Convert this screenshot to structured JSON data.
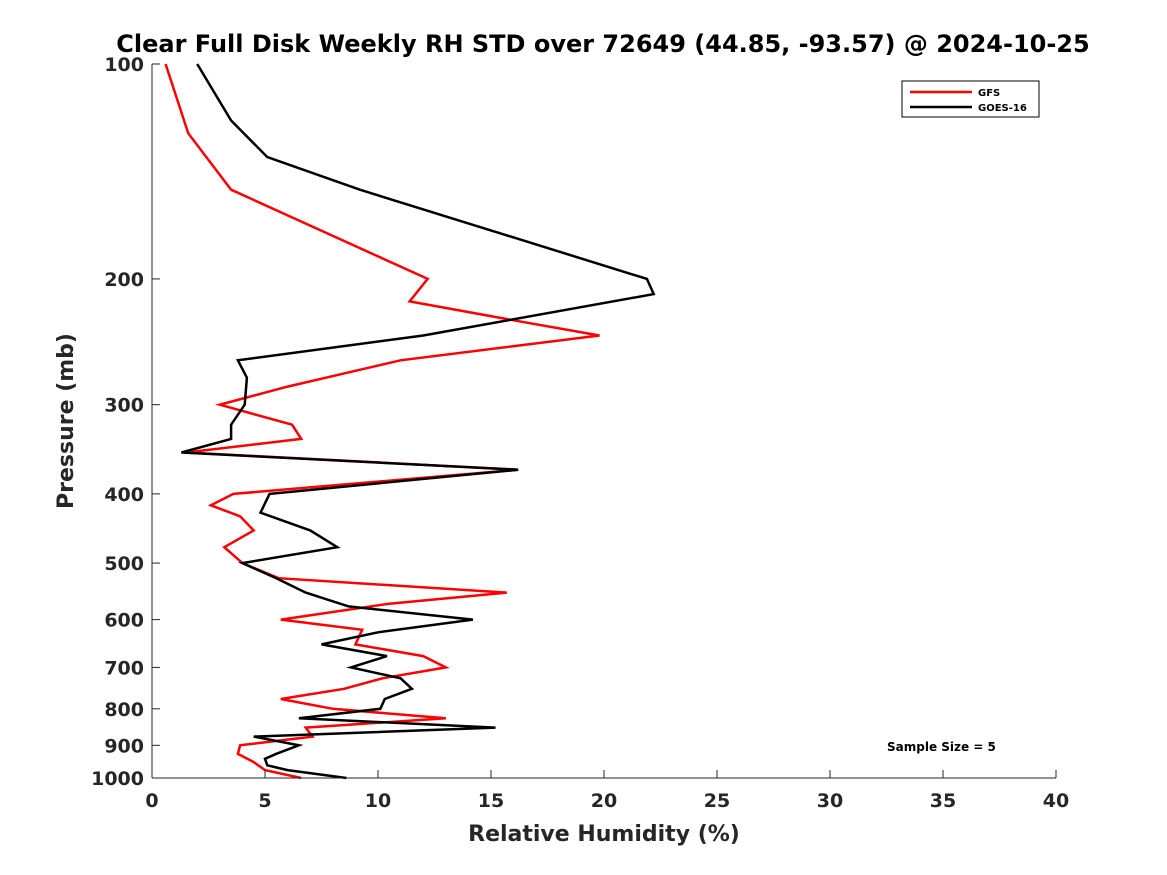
{
  "chart_data": {
    "type": "line",
    "title": "Clear Full Disk Weekly RH STD over 72649 (44.85, -93.57) @ 2024-10-25",
    "xlabel": "Relative Humidity (%)",
    "ylabel": "Pressure (mb)",
    "xlim": [
      0,
      40
    ],
    "ylim": [
      100,
      1000
    ],
    "y_scale": "log",
    "y_reversed": true,
    "grid": false,
    "legend_position": "top-right",
    "x_ticks": [
      0,
      5,
      10,
      15,
      20,
      25,
      30,
      35,
      40
    ],
    "y_ticks": [
      100,
      200,
      300,
      400,
      500,
      600,
      700,
      800,
      900,
      1000
    ],
    "annotation": "Sample Size = 5",
    "series": [
      {
        "name": "GFS",
        "color": "#ff0000",
        "points": [
          [
            0.6,
            100
          ],
          [
            1.6,
            125
          ],
          [
            3.5,
            150
          ],
          [
            12.2,
            200
          ],
          [
            11.4,
            215
          ],
          [
            16.5,
            230
          ],
          [
            19.8,
            240
          ],
          [
            11.0,
            260
          ],
          [
            6.0,
            283
          ],
          [
            3.0,
            300
          ],
          [
            6.2,
            320
          ],
          [
            6.6,
            335
          ],
          [
            1.5,
            350
          ],
          [
            16.2,
            370
          ],
          [
            3.6,
            400
          ],
          [
            2.6,
            415
          ],
          [
            3.9,
            430
          ],
          [
            4.5,
            450
          ],
          [
            3.2,
            475
          ],
          [
            4.0,
            500
          ],
          [
            5.6,
            525
          ],
          [
            15.7,
            550
          ],
          [
            10.5,
            570
          ],
          [
            5.7,
            600
          ],
          [
            9.3,
            620
          ],
          [
            9.0,
            650
          ],
          [
            12.0,
            675
          ],
          [
            13.0,
            700
          ],
          [
            10.2,
            725
          ],
          [
            8.5,
            750
          ],
          [
            5.7,
            775
          ],
          [
            8.0,
            800
          ],
          [
            13.0,
            825
          ],
          [
            6.8,
            850
          ],
          [
            7.1,
            875
          ],
          [
            3.9,
            900
          ],
          [
            3.8,
            925
          ],
          [
            4.5,
            950
          ],
          [
            5.0,
            975
          ],
          [
            6.6,
            1000
          ]
        ]
      },
      {
        "name": "GOES-16",
        "color": "#000000",
        "points": [
          [
            2.0,
            100
          ],
          [
            3.5,
            120
          ],
          [
            5.1,
            135
          ],
          [
            9.2,
            150
          ],
          [
            21.9,
            200
          ],
          [
            22.2,
            210
          ],
          [
            12.0,
            240
          ],
          [
            3.8,
            260
          ],
          [
            4.2,
            275
          ],
          [
            4.1,
            300
          ],
          [
            3.5,
            320
          ],
          [
            3.5,
            335
          ],
          [
            1.3,
            350
          ],
          [
            16.2,
            370
          ],
          [
            5.2,
            400
          ],
          [
            4.8,
            425
          ],
          [
            7.0,
            450
          ],
          [
            8.2,
            475
          ],
          [
            4.0,
            500
          ],
          [
            5.5,
            525
          ],
          [
            6.8,
            550
          ],
          [
            8.7,
            575
          ],
          [
            14.2,
            600
          ],
          [
            10.0,
            625
          ],
          [
            7.5,
            650
          ],
          [
            10.4,
            675
          ],
          [
            8.8,
            700
          ],
          [
            11.0,
            725
          ],
          [
            11.5,
            750
          ],
          [
            10.3,
            775
          ],
          [
            10.1,
            800
          ],
          [
            6.5,
            825
          ],
          [
            15.2,
            850
          ],
          [
            4.5,
            875
          ],
          [
            6.5,
            900
          ],
          [
            5.5,
            925
          ],
          [
            5.0,
            940
          ],
          [
            5.1,
            960
          ],
          [
            6.0,
            975
          ],
          [
            8.6,
            1000
          ]
        ]
      }
    ]
  }
}
